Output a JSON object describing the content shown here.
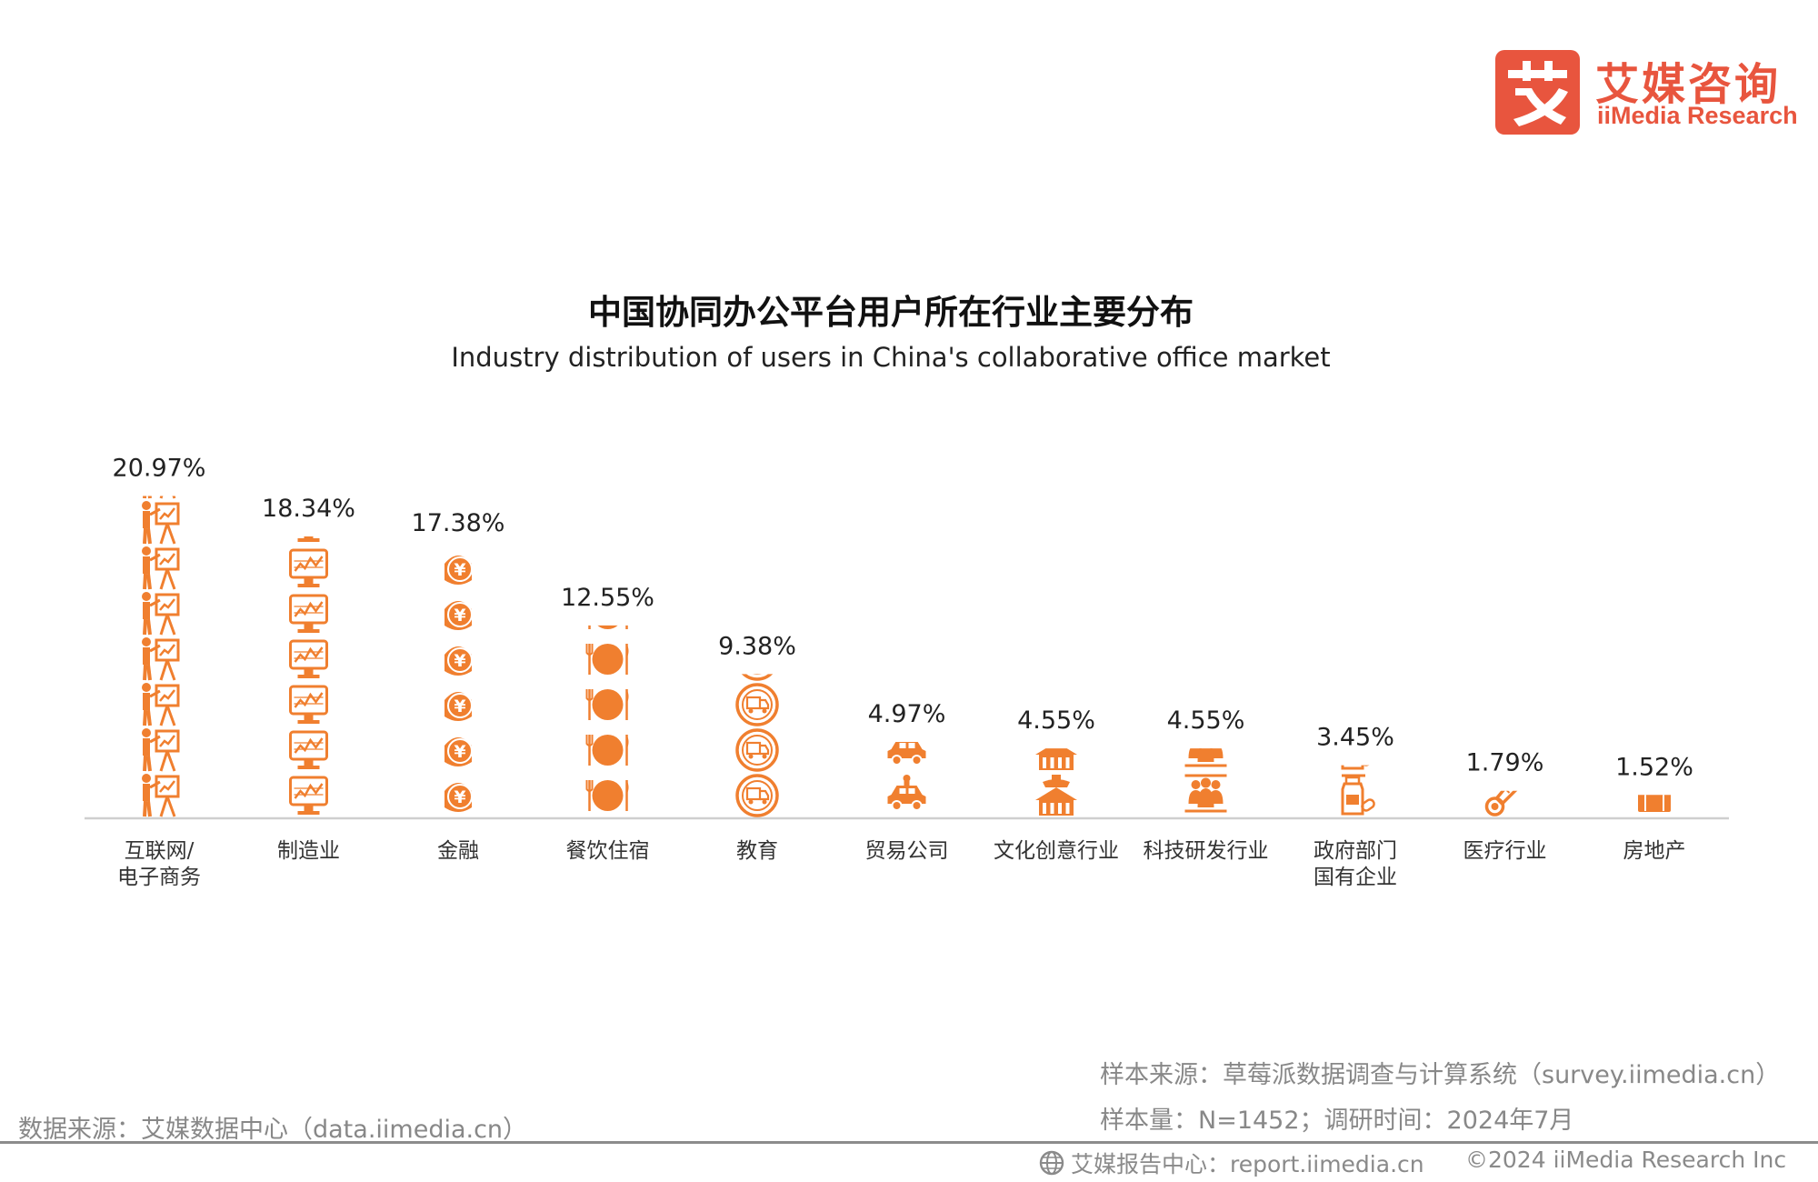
{
  "brand": {
    "name_cn": "艾媒咨询",
    "name_en": "iiMedia Research",
    "accent": "#e8553e"
  },
  "chart_data": {
    "type": "bar",
    "title": "中国协同办公平台用户所在行业主要分布",
    "subtitle": "Industry distribution of users in China's collaborative office market",
    "categories": [
      [
        "互联网/",
        "电子商务"
      ],
      [
        "制造业"
      ],
      [
        "金融"
      ],
      [
        "餐饮住宿"
      ],
      [
        "教育"
      ],
      [
        "贸易公司"
      ],
      [
        "文化创意行业"
      ],
      [
        "科技研发行业"
      ],
      [
        "政府部门",
        "国有企业"
      ],
      [
        "医疗行业"
      ],
      [
        "房地产"
      ]
    ],
    "values": [
      20.97,
      18.34,
      17.38,
      12.55,
      9.38,
      4.97,
      4.55,
      4.55,
      3.45,
      1.79,
      1.52
    ],
    "labels": [
      "20.97%",
      "18.34%",
      "17.38%",
      "12.55%",
      "9.38%",
      "4.97%",
      "4.55%",
      "4.55%",
      "3.45%",
      "1.79%",
      "1.52%"
    ],
    "icons": [
      "presenter-icon",
      "monitor-icon",
      "coin-icon",
      "dining-icon",
      "truck-badge-icon",
      "car-icon",
      "building-icon",
      "people-icon",
      "bottle-icon",
      "thermometer-icon",
      "suitcase-icon"
    ],
    "bar_color": "#f07f2f",
    "ylim": [
      0,
      21
    ],
    "xlabel": "",
    "ylabel": "",
    "unit": "%"
  },
  "footer": {
    "sample_source": "样本来源：草莓派数据调查与计算系统（survey.iimedia.cn）",
    "sample_size": "样本量：N=1452；调研时间：2024年7月",
    "data_source": "数据来源：艾媒数据中心（data.iimedia.cn）",
    "report_center": "艾媒报告中心：report.iimedia.cn",
    "copyright": "©2024  iiMedia Research  Inc"
  }
}
